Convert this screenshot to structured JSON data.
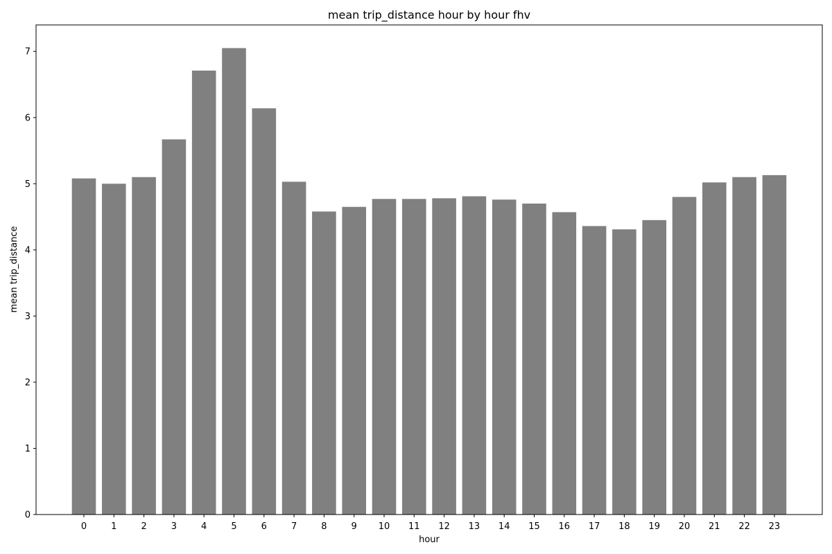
{
  "chart_data": {
    "type": "bar",
    "title": "mean trip_distance hour by hour fhv",
    "xlabel": "hour",
    "ylabel": "mean trip_distance",
    "categories": [
      "0",
      "1",
      "2",
      "3",
      "4",
      "5",
      "6",
      "7",
      "8",
      "9",
      "10",
      "11",
      "12",
      "13",
      "14",
      "15",
      "16",
      "17",
      "18",
      "19",
      "20",
      "21",
      "22",
      "23"
    ],
    "values": [
      5.08,
      5.0,
      5.1,
      5.67,
      6.71,
      7.05,
      6.14,
      5.03,
      4.58,
      4.65,
      4.77,
      4.77,
      4.78,
      4.81,
      4.76,
      4.7,
      4.57,
      4.36,
      4.31,
      4.45,
      4.8,
      5.02,
      5.1,
      5.13
    ],
    "ylim": [
      0,
      7.4
    ],
    "yticks": [
      0,
      1,
      2,
      3,
      4,
      5,
      6,
      7
    ],
    "bar_color": "#808080",
    "grid": false,
    "legend": false
  }
}
